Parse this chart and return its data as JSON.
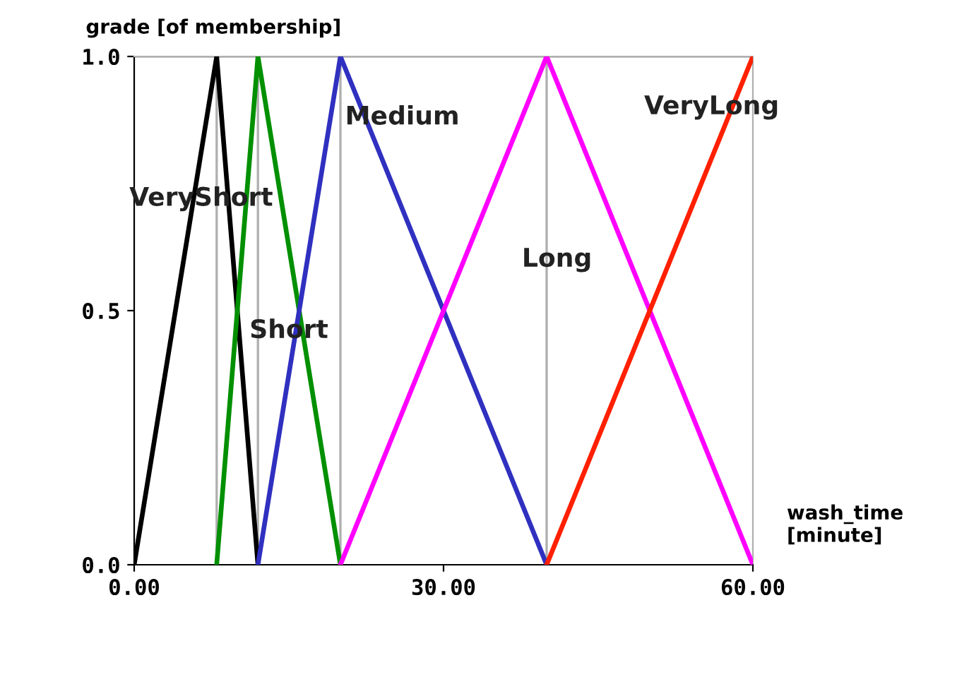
{
  "chart_data": {
    "type": "line",
    "ylabel": "grade [of membership]",
    "xlabel": "wash_time\n[minute]",
    "xlim": [
      0,
      60
    ],
    "ylim": [
      0,
      1
    ],
    "xticks": [
      {
        "value": 0,
        "label": "0.00"
      },
      {
        "value": 30,
        "label": "30.00"
      },
      {
        "value": 60,
        "label": "60.00"
      }
    ],
    "yticks": [
      {
        "value": 0,
        "label": "0.0"
      },
      {
        "value": 0.5,
        "label": "0.5"
      },
      {
        "value": 1,
        "label": "1.0"
      }
    ],
    "marker": "none",
    "line_style": "solid",
    "grid": false,
    "legend": false,
    "ref_lines": [
      {
        "axis": "x",
        "value": 8,
        "color": "#b0b0b0"
      },
      {
        "axis": "x",
        "value": 12,
        "color": "#b0b0b0"
      },
      {
        "axis": "x",
        "value": 20,
        "color": "#b0b0b0"
      },
      {
        "axis": "x",
        "value": 40,
        "color": "#b0b0b0"
      },
      {
        "axis": "y",
        "value": 1,
        "color": "#b0b0b0"
      }
    ],
    "series": [
      {
        "name": "VeryShort",
        "color": "#000000",
        "x": [
          0,
          8,
          12
        ],
        "values": [
          0,
          1,
          0
        ]
      },
      {
        "name": "Short",
        "color": "#009000",
        "x": [
          8,
          12,
          20
        ],
        "values": [
          0,
          1,
          0
        ]
      },
      {
        "name": "Medium",
        "color": "#3030c0",
        "x": [
          12,
          20,
          40
        ],
        "values": [
          0,
          1,
          0
        ]
      },
      {
        "name": "Long",
        "color": "#ff00ff",
        "x": [
          20,
          40,
          60
        ],
        "values": [
          0,
          1,
          0
        ]
      },
      {
        "name": "VeryLong",
        "color": "#ff2000",
        "x": [
          40,
          60
        ],
        "values": [
          0,
          1
        ]
      }
    ]
  }
}
